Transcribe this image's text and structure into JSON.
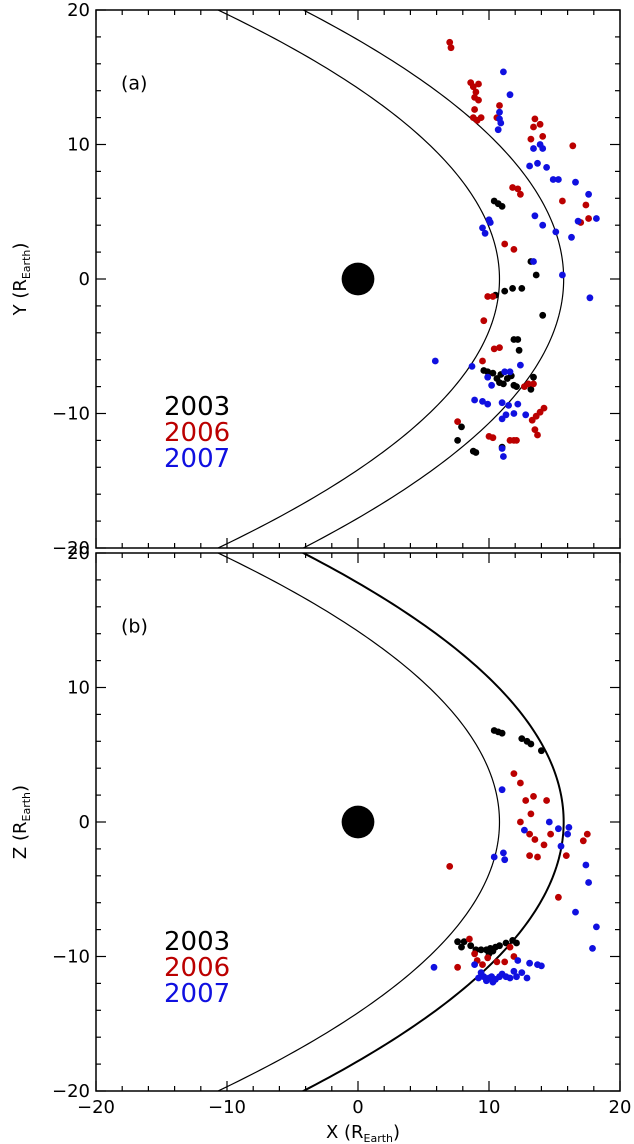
{
  "chart_data": [
    {
      "type": "scatter",
      "panel_label": "(a)",
      "xlabel": "",
      "ylabel_main": "Y (R",
      "ylabel_sub": "Earth",
      "ylabel_close": ")",
      "xlim": [
        -20,
        20
      ],
      "ylim": [
        -20,
        20
      ],
      "xticks": [
        -20,
        -10,
        0,
        10,
        20
      ],
      "yticks": [
        -20,
        -10,
        0,
        10,
        20
      ],
      "xtick_labels": [],
      "ytick_labels": [
        "−20",
        "−10",
        "0",
        "10",
        "20"
      ],
      "earth": {
        "x": 0,
        "y": 0,
        "radius": 1
      },
      "boundaries": [
        {
          "name": "magnetopause",
          "r0": 10.8,
          "flare": 0.58
        },
        {
          "name": "bow shock",
          "r0": 15.7,
          "flare": 0.78
        }
      ],
      "legend": {
        "position": "lower-left"
      },
      "series": [
        {
          "name": "2003",
          "color": "#000000",
          "points": [
            [
              10.4,
              5.8
            ],
            [
              10.7,
              5.6
            ],
            [
              11.0,
              5.4
            ],
            [
              10.5,
              -1.2
            ],
            [
              11.2,
              -0.9
            ],
            [
              11.8,
              -0.7
            ],
            [
              12.5,
              -0.7
            ],
            [
              13.2,
              1.3
            ],
            [
              13.6,
              0.3
            ],
            [
              14.1,
              -2.7
            ],
            [
              11.9,
              -4.5
            ],
            [
              12.2,
              -4.5
            ],
            [
              12.3,
              -5.3
            ],
            [
              9.6,
              -6.8
            ],
            [
              9.9,
              -6.9
            ],
            [
              10.3,
              -7.0
            ],
            [
              10.6,
              -7.4
            ],
            [
              10.9,
              -7.1
            ],
            [
              10.8,
              -7.7
            ],
            [
              11.1,
              -7.8
            ],
            [
              11.4,
              -7.4
            ],
            [
              11.7,
              -7.2
            ],
            [
              11.9,
              -7.9
            ],
            [
              12.1,
              -8.0
            ],
            [
              13.4,
              -7.3
            ],
            [
              13.2,
              -8.2
            ],
            [
              7.9,
              -11.0
            ],
            [
              7.6,
              -12.0
            ],
            [
              8.8,
              -12.8
            ],
            [
              9.0,
              -12.9
            ],
            [
              11.0,
              -12.5
            ]
          ]
        },
        {
          "name": "2006",
          "color": "#bb0000",
          "points": [
            [
              7.0,
              17.6
            ],
            [
              7.1,
              17.2
            ],
            [
              8.6,
              14.6
            ],
            [
              8.8,
              14.3
            ],
            [
              9.2,
              14.5
            ],
            [
              9.0,
              13.9
            ],
            [
              8.9,
              13.5
            ],
            [
              9.2,
              13.3
            ],
            [
              8.9,
              12.6
            ],
            [
              8.8,
              12.0
            ],
            [
              9.1,
              11.8
            ],
            [
              9.4,
              12.0
            ],
            [
              10.8,
              12.9
            ],
            [
              10.6,
              12.0
            ],
            [
              13.5,
              11.9
            ],
            [
              13.4,
              11.3
            ],
            [
              13.9,
              11.5
            ],
            [
              14.1,
              10.6
            ],
            [
              13.2,
              10.4
            ],
            [
              16.4,
              9.9
            ],
            [
              11.8,
              6.8
            ],
            [
              12.2,
              6.7
            ],
            [
              12.4,
              6.3
            ],
            [
              15.6,
              5.8
            ],
            [
              17.4,
              5.5
            ],
            [
              17.0,
              4.2
            ],
            [
              17.6,
              4.5
            ],
            [
              11.2,
              2.6
            ],
            [
              11.9,
              2.2
            ],
            [
              9.9,
              -1.3
            ],
            [
              10.3,
              -1.3
            ],
            [
              9.6,
              -3.1
            ],
            [
              9.5,
              -6.1
            ],
            [
              10.4,
              -5.2
            ],
            [
              10.8,
              -5.1
            ],
            [
              12.7,
              -8.0
            ],
            [
              13.0,
              -7.8
            ],
            [
              13.4,
              -7.8
            ],
            [
              13.6,
              -10.2
            ],
            [
              13.9,
              -9.9
            ],
            [
              14.2,
              -9.6
            ],
            [
              13.3,
              -10.5
            ],
            [
              13.5,
              -11.2
            ],
            [
              13.7,
              -11.6
            ],
            [
              7.6,
              -10.6
            ],
            [
              10.0,
              -11.7
            ],
            [
              10.3,
              -11.8
            ],
            [
              11.6,
              -12.0
            ],
            [
              11.9,
              -12.0
            ],
            [
              12.1,
              -12.0
            ]
          ]
        },
        {
          "name": "2007",
          "color": "#1010e0",
          "points": [
            [
              11.1,
              15.4
            ],
            [
              11.6,
              13.7
            ],
            [
              10.8,
              12.4
            ],
            [
              10.8,
              11.9
            ],
            [
              10.9,
              11.6
            ],
            [
              10.7,
              11.1
            ],
            [
              13.9,
              10.0
            ],
            [
              13.4,
              9.7
            ],
            [
              14.1,
              9.7
            ],
            [
              13.1,
              8.4
            ],
            [
              13.7,
              8.6
            ],
            [
              14.4,
              8.3
            ],
            [
              14.9,
              7.4
            ],
            [
              15.3,
              7.4
            ],
            [
              16.6,
              7.2
            ],
            [
              10.1,
              4.2
            ],
            [
              10.0,
              4.4
            ],
            [
              9.5,
              3.8
            ],
            [
              9.7,
              3.4
            ],
            [
              13.5,
              4.7
            ],
            [
              14.1,
              4.0
            ],
            [
              15.1,
              3.5
            ],
            [
              16.8,
              4.3
            ],
            [
              17.6,
              6.3
            ],
            [
              18.2,
              4.5
            ],
            [
              16.3,
              3.1
            ],
            [
              13.4,
              1.3
            ],
            [
              15.6,
              0.3
            ],
            [
              17.7,
              -1.4
            ],
            [
              5.9,
              -6.1
            ],
            [
              8.7,
              -6.5
            ],
            [
              9.9,
              -7.3
            ],
            [
              10.2,
              -7.9
            ],
            [
              11.2,
              -6.9
            ],
            [
              11.6,
              -6.9
            ],
            [
              12.4,
              -6.4
            ],
            [
              8.9,
              -9.0
            ],
            [
              9.5,
              -9.1
            ],
            [
              9.9,
              -9.3
            ],
            [
              11.0,
              -9.2
            ],
            [
              11.5,
              -9.4
            ],
            [
              12.2,
              -9.3
            ],
            [
              11.3,
              -10.1
            ],
            [
              11.0,
              -10.4
            ],
            [
              11.0,
              -12.6
            ],
            [
              11.1,
              -13.2
            ],
            [
              11.9,
              -10.0
            ],
            [
              12.8,
              -10.1
            ]
          ]
        }
      ]
    },
    {
      "type": "scatter",
      "panel_label": "(b)",
      "xlabel_main": "X (R",
      "xlabel_sub": "Earth",
      "xlabel_close": ")",
      "ylabel_main": "Z (R",
      "ylabel_sub": "Earth",
      "ylabel_close": ")",
      "xlim": [
        -20,
        20
      ],
      "ylim": [
        -20,
        20
      ],
      "xticks": [
        -20,
        -10,
        0,
        10,
        20
      ],
      "yticks": [
        -20,
        -10,
        0,
        10,
        20
      ],
      "xtick_labels": [
        "−20",
        "−10",
        "0",
        "10",
        "20"
      ],
      "ytick_labels": [
        "−20",
        "−10",
        "0",
        "10",
        "20"
      ],
      "earth": {
        "x": 0,
        "y": 0,
        "radius": 1
      },
      "boundaries": [
        {
          "name": "magnetopause",
          "r0": 10.8,
          "flare": 0.58
        },
        {
          "name": "bow shock",
          "r0": 15.7,
          "flare": 0.78
        }
      ],
      "legend": {
        "position": "lower-left"
      },
      "series": [
        {
          "name": "2003",
          "color": "#000000",
          "points": [
            [
              10.4,
              6.8
            ],
            [
              10.7,
              6.7
            ],
            [
              11.0,
              6.6
            ],
            [
              12.5,
              6.2
            ],
            [
              12.9,
              6.0
            ],
            [
              13.2,
              5.8
            ],
            [
              14.0,
              5.3
            ],
            [
              7.6,
              -8.9
            ],
            [
              7.9,
              -9.3
            ],
            [
              8.1,
              -8.9
            ],
            [
              8.6,
              -9.2
            ],
            [
              9.0,
              -9.5
            ],
            [
              9.4,
              -9.5
            ],
            [
              9.8,
              -9.5
            ],
            [
              10.1,
              -9.4
            ],
            [
              10.3,
              -9.6
            ],
            [
              10.5,
              -9.3
            ],
            [
              10.8,
              -9.2
            ],
            [
              11.3,
              -9.0
            ],
            [
              11.8,
              -8.8
            ],
            [
              12.1,
              -9.0
            ],
            [
              10.0,
              -9.8
            ]
          ]
        },
        {
          "name": "2006",
          "color": "#bb0000",
          "points": [
            [
              11.9,
              3.6
            ],
            [
              12.4,
              2.9
            ],
            [
              12.8,
              1.6
            ],
            [
              13.4,
              1.9
            ],
            [
              14.4,
              1.6
            ],
            [
              13.2,
              0.6
            ],
            [
              12.4,
              0.0
            ],
            [
              13.1,
              -0.9
            ],
            [
              13.5,
              -1.3
            ],
            [
              14.2,
              -1.7
            ],
            [
              13.7,
              -2.6
            ],
            [
              13.1,
              -2.5
            ],
            [
              14.7,
              -0.9
            ],
            [
              17.2,
              -1.4
            ],
            [
              17.5,
              -0.9
            ],
            [
              15.9,
              -2.5
            ],
            [
              15.3,
              -5.6
            ],
            [
              7.0,
              -3.3
            ],
            [
              8.5,
              -8.7
            ],
            [
              8.9,
              -9.8
            ],
            [
              9.1,
              -10.3
            ],
            [
              9.5,
              -10.6
            ],
            [
              9.9,
              -10.1
            ],
            [
              10.6,
              -10.4
            ],
            [
              11.6,
              -9.3
            ],
            [
              11.9,
              -10.0
            ],
            [
              7.6,
              -10.8
            ],
            [
              11.2,
              -10.4
            ]
          ]
        },
        {
          "name": "2007",
          "color": "#1010e0",
          "points": [
            [
              11.0,
              2.4
            ],
            [
              10.4,
              -2.6
            ],
            [
              11.1,
              -2.3
            ],
            [
              11.2,
              -2.8
            ],
            [
              12.7,
              -0.6
            ],
            [
              14.6,
              0.0
            ],
            [
              15.3,
              -0.5
            ],
            [
              16.1,
              -0.4
            ],
            [
              17.4,
              -3.2
            ],
            [
              17.6,
              -4.5
            ],
            [
              17.9,
              -9.4
            ],
            [
              18.2,
              -7.8
            ],
            [
              16.6,
              -6.7
            ],
            [
              15.5,
              -1.8
            ],
            [
              16.0,
              -0.9
            ],
            [
              5.8,
              -10.8
            ],
            [
              8.9,
              -10.6
            ],
            [
              9.2,
              -11.6
            ],
            [
              9.4,
              -11.2
            ],
            [
              9.6,
              -11.5
            ],
            [
              9.8,
              -11.8
            ],
            [
              10.0,
              -11.6
            ],
            [
              10.2,
              -11.5
            ],
            [
              10.3,
              -11.9
            ],
            [
              10.5,
              -11.7
            ],
            [
              10.8,
              -11.5
            ],
            [
              11.0,
              -11.3
            ],
            [
              11.3,
              -11.5
            ],
            [
              11.6,
              -11.6
            ],
            [
              11.9,
              -11.1
            ],
            [
              12.1,
              -11.5
            ],
            [
              12.5,
              -11.2
            ],
            [
              12.9,
              -11.6
            ],
            [
              13.7,
              -10.6
            ],
            [
              14.0,
              -10.7
            ],
            [
              12.2,
              -10.3
            ],
            [
              13.1,
              -10.5
            ]
          ]
        }
      ]
    }
  ]
}
